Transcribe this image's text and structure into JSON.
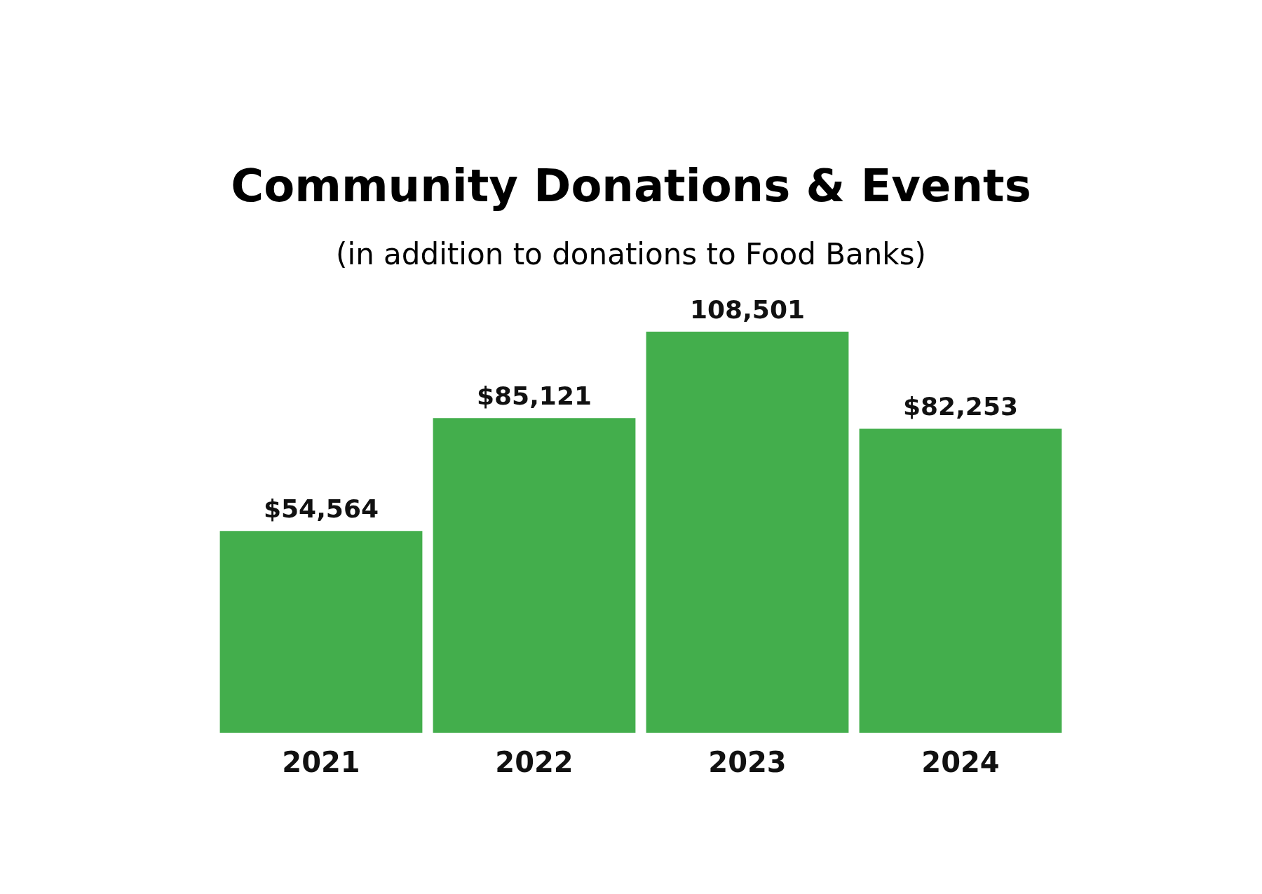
{
  "chart_data": {
    "type": "bar",
    "title": "Community Donations & Events",
    "subtitle": "(in addition to donations to Food Banks)",
    "categories": [
      "2021",
      "2022",
      "2023",
      "2024"
    ],
    "values": [
      54564,
      85121,
      108501,
      82253
    ],
    "value_labels": [
      "$54,564",
      "$85,121",
      "108,501",
      "$82,253"
    ],
    "color": "#43ae4c",
    "grid": false,
    "tick_labels": "x"
  }
}
